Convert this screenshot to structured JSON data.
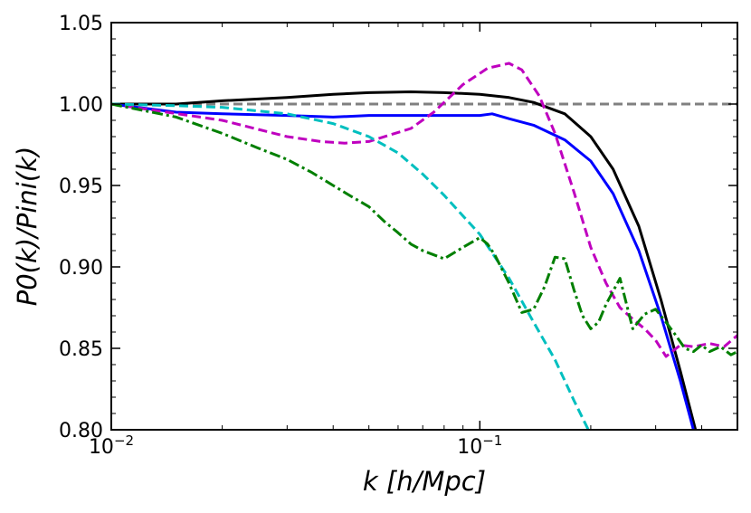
{
  "chart_data": {
    "type": "line",
    "xlabel": "k [h/Mpc]",
    "ylabel": "P0(k)/Pini(k)",
    "xscale": "log",
    "xlim": [
      0.01,
      0.5
    ],
    "ylim": [
      0.8,
      1.05
    ],
    "x_tick_labels": [
      {
        "value": 0.01,
        "base": "10",
        "exp": "−2"
      },
      {
        "value": 0.1,
        "base": "10",
        "exp": "−1"
      }
    ],
    "y_ticks": [
      0.8,
      0.85,
      0.9,
      0.95,
      1.0,
      1.05
    ],
    "y_tick_labels": [
      "0.80",
      "0.85",
      "0.90",
      "0.95",
      "1.00",
      "1.05"
    ],
    "grid": false,
    "series": [
      {
        "color": "#808080",
        "style": "dashed",
        "x": [
          0.01,
          0.5
        ],
        "y": [
          1.0,
          1.0
        ]
      },
      {
        "color": "#000000",
        "style": "solid",
        "x": [
          0.01,
          0.015,
          0.02,
          0.03,
          0.04,
          0.05,
          0.065,
          0.08,
          0.1,
          0.12,
          0.14,
          0.17,
          0.2,
          0.23,
          0.27,
          0.31,
          0.35,
          0.39
        ],
        "y": [
          1.0,
          1.0,
          1.002,
          1.004,
          1.006,
          1.007,
          1.0075,
          1.007,
          1.006,
          1.004,
          1.001,
          0.994,
          0.98,
          0.96,
          0.925,
          0.88,
          0.836,
          0.795
        ]
      },
      {
        "color": "#0000ff",
        "style": "solid",
        "x": [
          0.01,
          0.015,
          0.02,
          0.03,
          0.04,
          0.05,
          0.065,
          0.08,
          0.1,
          0.108,
          0.12,
          0.14,
          0.17,
          0.2,
          0.23,
          0.27,
          0.31,
          0.35,
          0.385
        ],
        "y": [
          1.0,
          0.995,
          0.994,
          0.993,
          0.992,
          0.993,
          0.993,
          0.993,
          0.993,
          0.994,
          0.991,
          0.987,
          0.978,
          0.965,
          0.945,
          0.91,
          0.87,
          0.83,
          0.795
        ]
      },
      {
        "color": "#bf00bf",
        "style": "dashed",
        "x": [
          0.01,
          0.02,
          0.03,
          0.037,
          0.043,
          0.05,
          0.065,
          0.075,
          0.09,
          0.105,
          0.12,
          0.13,
          0.145,
          0.16,
          0.18,
          0.2,
          0.22,
          0.24,
          0.26,
          0.28,
          0.3,
          0.32,
          0.35,
          0.38,
          0.42,
          0.46,
          0.5
        ],
        "y": [
          1.0,
          0.99,
          0.98,
          0.977,
          0.976,
          0.977,
          0.985,
          0.995,
          1.012,
          1.022,
          1.025,
          1.021,
          1.005,
          0.982,
          0.946,
          0.912,
          0.89,
          0.875,
          0.868,
          0.862,
          0.855,
          0.845,
          0.852,
          0.851,
          0.853,
          0.851,
          0.858
        ]
      },
      {
        "color": "#00bfbf",
        "style": "dashed",
        "x": [
          0.01,
          0.015,
          0.02,
          0.03,
          0.04,
          0.05,
          0.06,
          0.07,
          0.08,
          0.1,
          0.12,
          0.14,
          0.16,
          0.18,
          0.2,
          0.21
        ],
        "y": [
          1.0,
          0.999,
          0.998,
          0.994,
          0.988,
          0.98,
          0.97,
          0.957,
          0.944,
          0.92,
          0.893,
          0.866,
          0.843,
          0.818,
          0.797,
          0.785
        ]
      },
      {
        "color": "#007f00",
        "style": "dashdot",
        "x": [
          0.01,
          0.015,
          0.02,
          0.025,
          0.03,
          0.035,
          0.04,
          0.045,
          0.05,
          0.055,
          0.06,
          0.065,
          0.07,
          0.08,
          0.09,
          0.1,
          0.105,
          0.11,
          0.12,
          0.13,
          0.14,
          0.15,
          0.16,
          0.17,
          0.18,
          0.19,
          0.2,
          0.21,
          0.22,
          0.24,
          0.26,
          0.28,
          0.3,
          0.32,
          0.34,
          0.36,
          0.38,
          0.4,
          0.42,
          0.45,
          0.48,
          0.5
        ],
        "y": [
          1.0,
          0.992,
          0.982,
          0.973,
          0.966,
          0.958,
          0.95,
          0.943,
          0.937,
          0.928,
          0.921,
          0.914,
          0.91,
          0.905,
          0.912,
          0.918,
          0.914,
          0.907,
          0.89,
          0.872,
          0.874,
          0.888,
          0.906,
          0.905,
          0.886,
          0.87,
          0.862,
          0.866,
          0.877,
          0.893,
          0.862,
          0.871,
          0.874,
          0.866,
          0.858,
          0.85,
          0.848,
          0.852,
          0.848,
          0.851,
          0.846,
          0.848
        ]
      }
    ]
  }
}
